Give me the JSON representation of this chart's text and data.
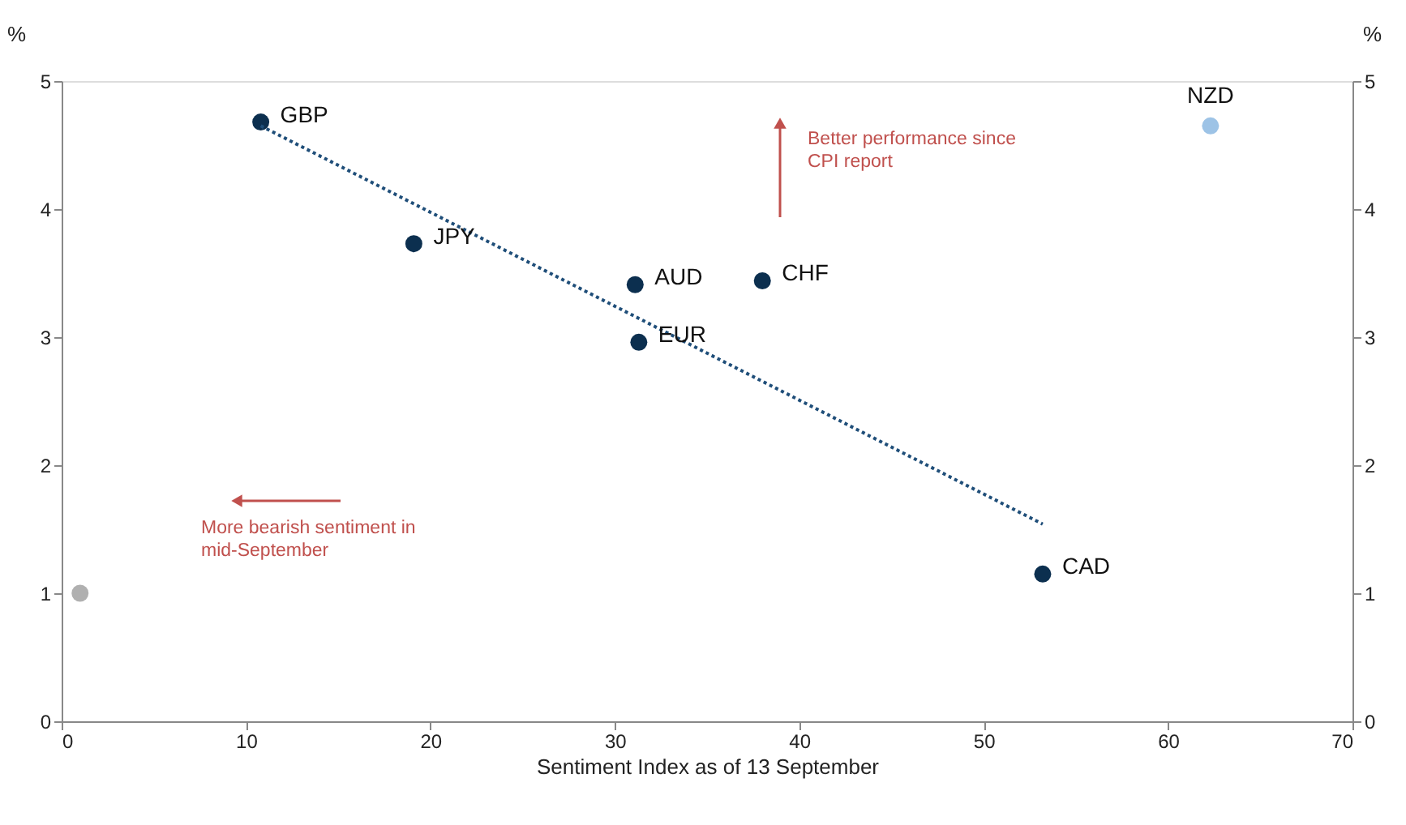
{
  "chart_data": {
    "type": "scatter",
    "xlabel": "Sentiment Index as of 13 September",
    "ylabel": "%",
    "y2label": "%",
    "xlim": [
      0,
      70
    ],
    "xticks": [
      0,
      10,
      20,
      30,
      40,
      50,
      60,
      70
    ],
    "ylim": [
      0,
      5
    ],
    "yticks": [
      0,
      1,
      2,
      3,
      4,
      5
    ],
    "y2lim": [
      0,
      5
    ],
    "y2ticks": [
      0,
      1,
      2,
      3,
      4,
      5
    ],
    "grid": false,
    "marker": "circle",
    "series": [
      {
        "color": "#0c2f4f",
        "x": [
          10.8,
          19.1,
          31.1,
          31.3,
          38.0,
          53.2
        ],
        "values": [
          4.68,
          3.73,
          3.41,
          2.96,
          3.44,
          1.15
        ]
      },
      {
        "color": "#9dc3e6",
        "x": [
          62.3
        ],
        "values": [
          4.65
        ]
      },
      {
        "color": "#b0b0b0",
        "x": [
          1.0
        ],
        "values": [
          1.0
        ]
      },
      {
        "type": "line",
        "color": "#1f4e79",
        "line_style": "dotted",
        "marker": "none",
        "x": [
          10.8,
          53.2
        ],
        "values": [
          4.65,
          1.54
        ]
      }
    ],
    "annotations": [
      {
        "text": "GBP",
        "x": 10.8,
        "y": 4.68
      },
      {
        "text": "JPY",
        "x": 19.1,
        "y": 3.73
      },
      {
        "text": "AUD",
        "x": 31.1,
        "y": 3.41
      },
      {
        "text": "EUR",
        "x": 31.3,
        "y": 2.96
      },
      {
        "text": "CHF",
        "x": 38.0,
        "y": 3.44
      },
      {
        "text": "CAD",
        "x": 53.2,
        "y": 1.15
      },
      {
        "text": "NZD",
        "x": 62.3,
        "y": 4.65
      },
      "Better performance since\nCPI  report",
      "More bearish sentiment in\nmid-September"
    ]
  }
}
